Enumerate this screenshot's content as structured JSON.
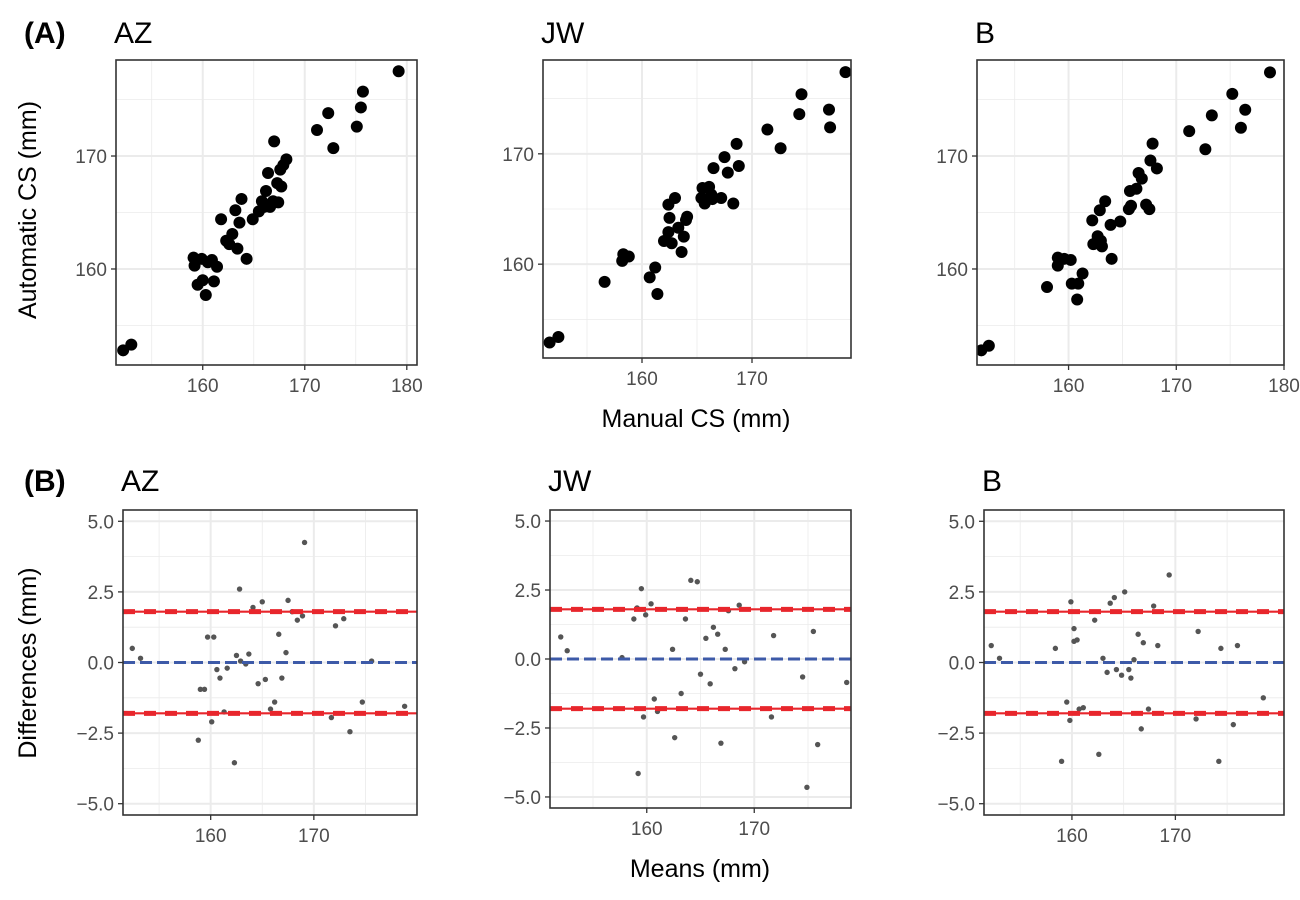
{
  "chart_data": [
    {
      "type": "scatter",
      "row": "A",
      "facet": "AZ",
      "xlim": [
        151.5,
        181
      ],
      "ylim": [
        151.5,
        178.5
      ],
      "xticks": [
        160,
        170,
        180
      ],
      "yticks": [
        160,
        170
      ],
      "points": [
        [
          152.2,
          152.8
        ],
        [
          153.0,
          153.3
        ],
        [
          159.1,
          161.0
        ],
        [
          159.2,
          160.3
        ],
        [
          159.5,
          158.6
        ],
        [
          159.9,
          160.9
        ],
        [
          160.0,
          159.0
        ],
        [
          160.3,
          157.7
        ],
        [
          160.5,
          160.6
        ],
        [
          160.9,
          160.8
        ],
        [
          161.1,
          158.9
        ],
        [
          161.4,
          160.2
        ],
        [
          161.8,
          164.4
        ],
        [
          162.3,
          162.5
        ],
        [
          162.6,
          162.2
        ],
        [
          162.9,
          163.1
        ],
        [
          163.2,
          165.2
        ],
        [
          163.4,
          161.8
        ],
        [
          163.6,
          164.1
        ],
        [
          163.8,
          166.2
        ],
        [
          164.3,
          160.9
        ],
        [
          164.9,
          164.4
        ],
        [
          165.5,
          165.1
        ],
        [
          165.8,
          166.0
        ],
        [
          166.0,
          165.5
        ],
        [
          166.2,
          166.9
        ],
        [
          166.4,
          168.5
        ],
        [
          166.6,
          165.5
        ],
        [
          166.9,
          166.0
        ],
        [
          167.0,
          171.3
        ],
        [
          167.3,
          167.6
        ],
        [
          167.6,
          168.8
        ],
        [
          167.4,
          165.9
        ],
        [
          167.7,
          167.3
        ],
        [
          167.9,
          169.2
        ],
        [
          168.2,
          169.7
        ],
        [
          171.2,
          172.3
        ],
        [
          172.3,
          173.8
        ],
        [
          172.8,
          170.7
        ],
        [
          175.1,
          172.6
        ],
        [
          175.5,
          174.3
        ],
        [
          175.7,
          175.7
        ],
        [
          179.2,
          177.5
        ]
      ]
    },
    {
      "type": "scatter",
      "row": "A",
      "facet": "JW",
      "xlim": [
        151,
        179
      ],
      "ylim": [
        151.5,
        178.5
      ],
      "xticks": [
        160,
        170
      ],
      "yticks": [
        160,
        170
      ],
      "points": [
        [
          151.6,
          152.9
        ],
        [
          152.4,
          153.4
        ],
        [
          156.6,
          158.4
        ],
        [
          158.2,
          160.3
        ],
        [
          158.3,
          160.9
        ],
        [
          158.8,
          160.7
        ],
        [
          160.7,
          158.8
        ],
        [
          161.2,
          159.7
        ],
        [
          161.4,
          157.3
        ],
        [
          162.0,
          162.1
        ],
        [
          162.4,
          165.4
        ],
        [
          162.4,
          162.9
        ],
        [
          162.5,
          164.2
        ],
        [
          162.7,
          161.9
        ],
        [
          163.0,
          166.0
        ],
        [
          163.3,
          163.3
        ],
        [
          163.6,
          161.1
        ],
        [
          163.8,
          162.5
        ],
        [
          164.0,
          164.0
        ],
        [
          164.1,
          164.3
        ],
        [
          165.4,
          166.0
        ],
        [
          165.5,
          166.9
        ],
        [
          165.7,
          165.5
        ],
        [
          166.1,
          167.0
        ],
        [
          166.3,
          166.3
        ],
        [
          166.4,
          165.9
        ],
        [
          166.5,
          168.7
        ],
        [
          167.2,
          166.0
        ],
        [
          167.5,
          169.7
        ],
        [
          167.8,
          168.3
        ],
        [
          168.3,
          165.5
        ],
        [
          168.6,
          170.9
        ],
        [
          168.8,
          168.9
        ],
        [
          171.4,
          172.2
        ],
        [
          172.6,
          170.5
        ],
        [
          174.3,
          173.6
        ],
        [
          174.5,
          175.4
        ],
        [
          177.0,
          174.0
        ],
        [
          177.1,
          172.4
        ],
        [
          178.5,
          177.4
        ]
      ]
    },
    {
      "type": "scatter",
      "row": "A",
      "facet": "B",
      "xlim": [
        151.5,
        180
      ],
      "ylim": [
        151.5,
        178.5
      ],
      "xticks": [
        160,
        170,
        180
      ],
      "yticks": [
        160,
        170
      ],
      "points": [
        [
          151.9,
          152.8
        ],
        [
          152.6,
          153.2
        ],
        [
          158.0,
          158.4
        ],
        [
          159.0,
          160.3
        ],
        [
          159.0,
          161.0
        ],
        [
          159.6,
          160.9
        ],
        [
          160.2,
          160.8
        ],
        [
          160.3,
          158.7
        ],
        [
          160.8,
          157.3
        ],
        [
          160.9,
          158.7
        ],
        [
          161.3,
          159.6
        ],
        [
          162.2,
          164.3
        ],
        [
          162.3,
          162.2
        ],
        [
          162.7,
          162.9
        ],
        [
          162.9,
          165.2
        ],
        [
          163.0,
          162.5
        ],
        [
          163.1,
          162.0
        ],
        [
          163.4,
          166.0
        ],
        [
          163.9,
          163.9
        ],
        [
          164.0,
          160.9
        ],
        [
          164.8,
          164.2
        ],
        [
          165.6,
          165.3
        ],
        [
          165.7,
          166.9
        ],
        [
          165.8,
          165.6
        ],
        [
          166.3,
          167.1
        ],
        [
          166.5,
          168.5
        ],
        [
          166.8,
          168.0
        ],
        [
          167.2,
          165.7
        ],
        [
          167.5,
          165.3
        ],
        [
          167.6,
          169.6
        ],
        [
          167.8,
          171.1
        ],
        [
          168.2,
          168.9
        ],
        [
          171.2,
          172.2
        ],
        [
          172.7,
          170.6
        ],
        [
          173.3,
          173.6
        ],
        [
          175.2,
          175.5
        ],
        [
          176.0,
          172.5
        ],
        [
          176.4,
          174.1
        ],
        [
          178.7,
          177.4
        ]
      ]
    },
    {
      "type": "scatter",
      "row": "B",
      "facet": "AZ",
      "xlim": [
        151.5,
        180
      ],
      "ylim": [
        -5.4,
        5.4
      ],
      "xticks": [
        160,
        170
      ],
      "yticks": [
        -5.0,
        -2.5,
        0.0,
        2.5,
        5.0
      ],
      "mean_difference": 0.0,
      "limits_of_agreement": [
        -1.8,
        1.8
      ],
      "points": [
        [
          152.4,
          0.5
        ],
        [
          153.2,
          0.15
        ],
        [
          158.8,
          -2.75
        ],
        [
          159.0,
          -0.95
        ],
        [
          159.4,
          -0.95
        ],
        [
          159.7,
          0.9
        ],
        [
          160.1,
          -2.1
        ],
        [
          160.3,
          0.9
        ],
        [
          160.6,
          -0.25
        ],
        [
          160.9,
          -0.55
        ],
        [
          161.3,
          -1.75
        ],
        [
          161.6,
          -0.2
        ],
        [
          162.3,
          -3.55
        ],
        [
          162.5,
          0.25
        ],
        [
          162.8,
          2.6
        ],
        [
          162.9,
          0.05
        ],
        [
          163.4,
          -0.05
        ],
        [
          163.7,
          0.3
        ],
        [
          164.1,
          1.95
        ],
        [
          164.6,
          -0.75
        ],
        [
          165.0,
          2.15
        ],
        [
          165.3,
          -0.6
        ],
        [
          165.8,
          -1.65
        ],
        [
          166.2,
          -1.4
        ],
        [
          166.6,
          1.0
        ],
        [
          166.9,
          -0.55
        ],
        [
          167.3,
          0.35
        ],
        [
          167.5,
          2.2
        ],
        [
          167.9,
          1.8
        ],
        [
          168.4,
          1.5
        ],
        [
          168.9,
          1.65
        ],
        [
          169.1,
          4.25
        ],
        [
          171.7,
          -1.95
        ],
        [
          172.1,
          1.3
        ],
        [
          172.9,
          1.55
        ],
        [
          173.5,
          -2.45
        ],
        [
          174.7,
          -1.4
        ],
        [
          175.6,
          0.05
        ],
        [
          178.8,
          -1.55
        ]
      ]
    },
    {
      "type": "scatter",
      "row": "B",
      "facet": "JW",
      "xlim": [
        151,
        179
      ],
      "ylim": [
        -5.4,
        5.4
      ],
      "xticks": [
        160,
        170
      ],
      "yticks": [
        -5.0,
        -2.5,
        0.0,
        2.5,
        5.0
      ],
      "mean_difference": 0.0,
      "limits_of_agreement": [
        -1.8,
        1.8
      ],
      "points": [
        [
          152.0,
          0.8
        ],
        [
          152.6,
          0.3
        ],
        [
          157.7,
          0.05
        ],
        [
          158.8,
          1.45
        ],
        [
          159.1,
          1.85
        ],
        [
          159.2,
          -4.15
        ],
        [
          159.5,
          2.55
        ],
        [
          159.7,
          -2.1
        ],
        [
          159.9,
          1.6
        ],
        [
          160.4,
          2.0
        ],
        [
          160.7,
          -1.45
        ],
        [
          161.0,
          -1.9
        ],
        [
          162.4,
          0.35
        ],
        [
          162.6,
          -2.85
        ],
        [
          163.2,
          -1.25
        ],
        [
          163.6,
          1.45
        ],
        [
          164.1,
          2.85
        ],
        [
          164.7,
          2.8
        ],
        [
          165.0,
          -0.55
        ],
        [
          165.5,
          0.75
        ],
        [
          165.9,
          -0.9
        ],
        [
          166.2,
          1.15
        ],
        [
          166.6,
          0.9
        ],
        [
          166.9,
          -3.05
        ],
        [
          167.3,
          0.35
        ],
        [
          167.6,
          1.75
        ],
        [
          168.2,
          -0.35
        ],
        [
          168.6,
          1.95
        ],
        [
          169.1,
          -0.1
        ],
        [
          171.6,
          -2.1
        ],
        [
          171.8,
          0.85
        ],
        [
          174.5,
          -0.65
        ],
        [
          174.9,
          -4.65
        ],
        [
          175.5,
          1.0
        ],
        [
          175.9,
          -3.1
        ],
        [
          178.6,
          -0.85
        ]
      ]
    },
    {
      "type": "scatter",
      "row": "B",
      "facet": "B",
      "xlim": [
        151.5,
        180.5
      ],
      "ylim": [
        -5.4,
        5.4
      ],
      "xticks": [
        160,
        170
      ],
      "yticks": [
        -5.0,
        -2.5,
        0.0,
        2.5,
        5.0
      ],
      "mean_difference": 0.0,
      "limits_of_agreement": [
        -1.8,
        1.8
      ],
      "points": [
        [
          152.2,
          0.6
        ],
        [
          153.0,
          0.15
        ],
        [
          158.4,
          0.5
        ],
        [
          159.0,
          -3.5
        ],
        [
          159.5,
          -1.4
        ],
        [
          159.8,
          -2.05
        ],
        [
          159.9,
          2.15
        ],
        [
          160.2,
          1.2
        ],
        [
          160.2,
          0.75
        ],
        [
          160.5,
          0.8
        ],
        [
          160.7,
          -1.65
        ],
        [
          161.1,
          -1.6
        ],
        [
          162.2,
          1.5
        ],
        [
          162.6,
          -3.25
        ],
        [
          163.0,
          0.15
        ],
        [
          163.4,
          -0.35
        ],
        [
          163.7,
          2.1
        ],
        [
          164.1,
          2.3
        ],
        [
          164.3,
          -0.25
        ],
        [
          164.8,
          -0.45
        ],
        [
          165.1,
          2.5
        ],
        [
          165.5,
          -0.25
        ],
        [
          165.7,
          -0.55
        ],
        [
          166.0,
          0.1
        ],
        [
          166.4,
          1.0
        ],
        [
          166.7,
          -2.35
        ],
        [
          166.9,
          0.7
        ],
        [
          167.4,
          -1.65
        ],
        [
          167.9,
          2.0
        ],
        [
          168.3,
          0.6
        ],
        [
          169.4,
          3.1
        ],
        [
          172.0,
          -2.0
        ],
        [
          172.2,
          1.1
        ],
        [
          174.2,
          -3.5
        ],
        [
          174.4,
          0.5
        ],
        [
          175.6,
          -2.2
        ],
        [
          176.0,
          0.6
        ],
        [
          178.5,
          -1.25
        ]
      ]
    }
  ],
  "figure": {
    "panel_letters": [
      "(A)",
      "(B)"
    ],
    "facet_titles_row_a": [
      "AZ",
      "JW",
      "B"
    ],
    "facet_titles_row_b": [
      "AZ",
      "JW",
      "B"
    ],
    "row_a_x_title": "Manual CS (mm)",
    "row_a_y_title": "Automatic CS (mm)",
    "row_b_x_title": "Means (mm)",
    "row_b_y_title": "Differences (mm)",
    "colors": {
      "points": "#000000",
      "diff_points": "#555555",
      "mean_line": "#3d5aa8",
      "loa_line": "#e8262c",
      "grid": "#ebebeb",
      "border": "#333333"
    }
  }
}
